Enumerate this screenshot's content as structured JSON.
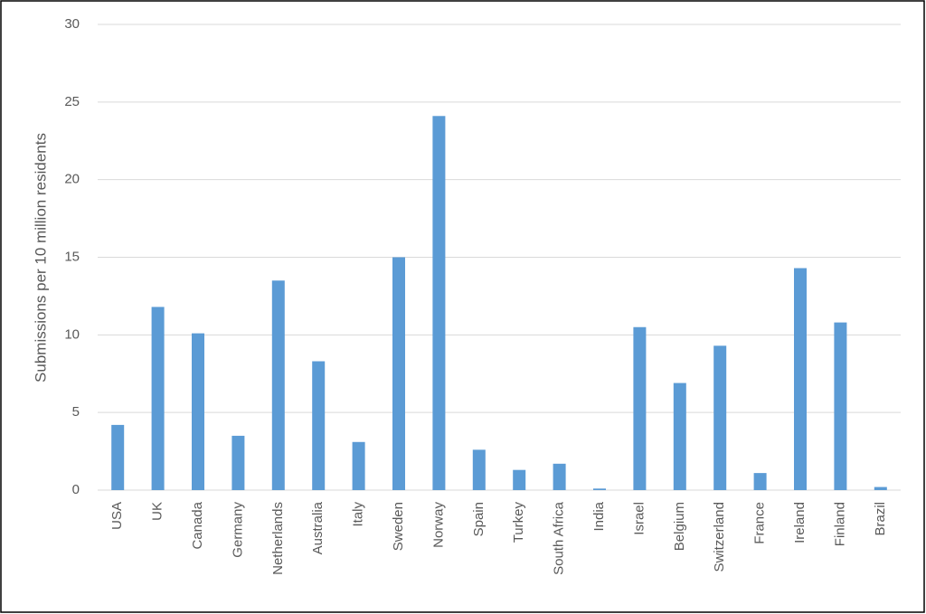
{
  "chart_data": {
    "type": "bar",
    "y_label": "Submissions per 10 million residents",
    "categories": [
      "USA",
      "UK",
      "Canada",
      "Germany",
      "Netherlands",
      "Australia",
      "Italy",
      "Sweden",
      "Norway",
      "Spain",
      "Turkey",
      "South Africa",
      "India",
      "Israel",
      "Belgium",
      "Switzerland",
      "France",
      "Ireland",
      "Finland",
      "Brazil"
    ],
    "values": [
      4.2,
      11.8,
      10.1,
      3.5,
      13.5,
      8.3,
      3.1,
      15.0,
      24.1,
      2.6,
      1.3,
      1.7,
      0.1,
      10.5,
      6.9,
      9.3,
      1.1,
      14.3,
      10.8,
      0.2
    ],
    "color": "#5b9bd5",
    "ylim": [
      0,
      30
    ],
    "yticks": [
      0,
      5,
      10,
      15,
      20,
      25,
      30
    ],
    "grid": true
  }
}
